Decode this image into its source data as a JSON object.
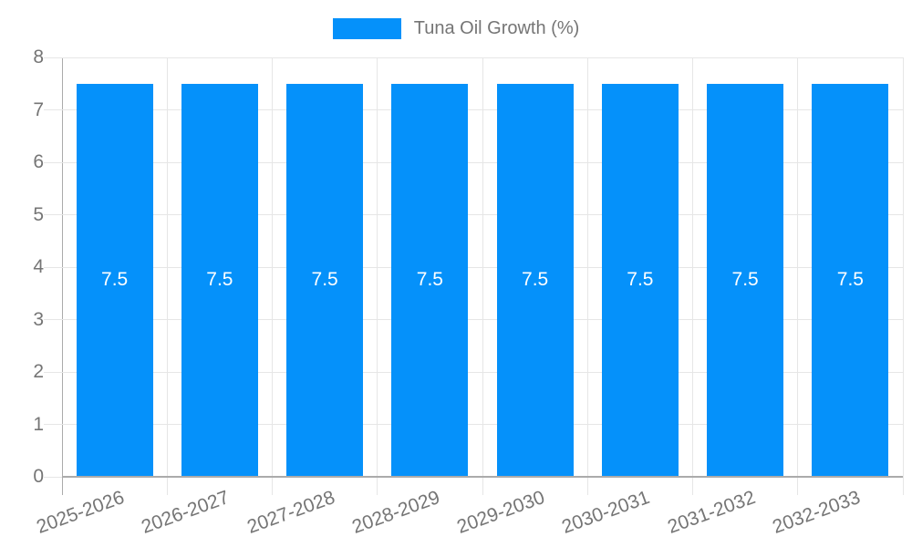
{
  "chart_data": {
    "type": "bar",
    "title": "Tuna Oil Growth (%)",
    "legend_entries": [
      {
        "label": "Tuna Oil Growth (%)",
        "color": "#0591fa"
      }
    ],
    "legend_position": "top-center",
    "categories": [
      "2025-2026",
      "2026-2027",
      "2027-2028",
      "2028-2029",
      "2029-2030",
      "2030-2031",
      "2031-2032",
      "2032-2033"
    ],
    "series": [
      {
        "name": "Tuna Oil Growth (%)",
        "values": [
          7.5,
          7.5,
          7.5,
          7.5,
          7.5,
          7.5,
          7.5,
          7.5
        ]
      }
    ],
    "bar_value_labels": [
      "7.5",
      "7.5",
      "7.5",
      "7.5",
      "7.5",
      "7.5",
      "7.5",
      "7.5"
    ],
    "xlabel": "",
    "ylabel": "",
    "ylim": [
      0,
      8
    ],
    "yticks": [
      0,
      1,
      2,
      3,
      4,
      5,
      6,
      7,
      8
    ],
    "grid": true,
    "colors": {
      "bar": "#0591fa",
      "grid": "#e6e6e6",
      "axis": "#ababab",
      "tick_text": "#757575",
      "value_label": "#ffffff",
      "background": "#ffffff"
    }
  }
}
